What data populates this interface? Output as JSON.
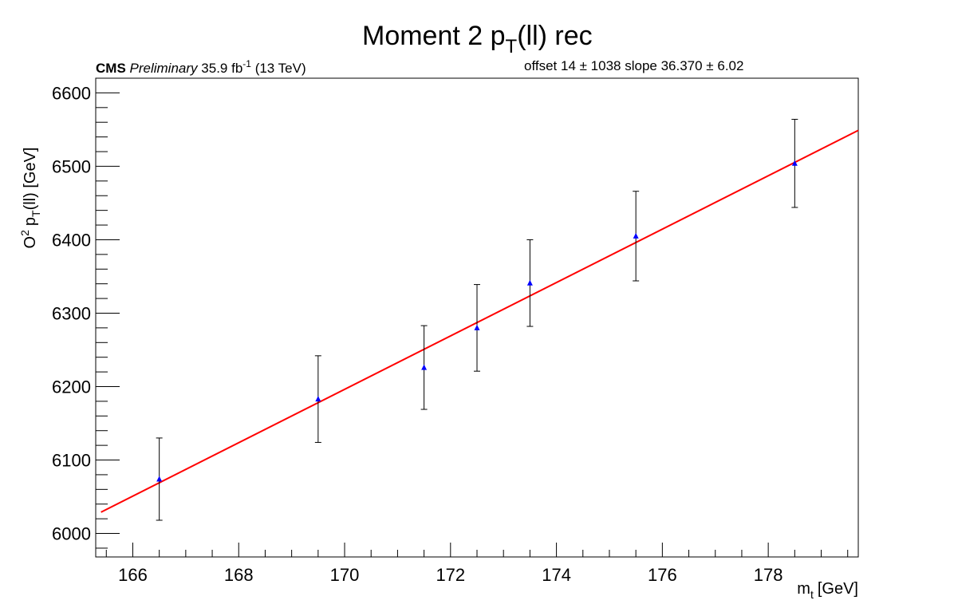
{
  "chart_data": {
    "type": "scatter",
    "title_main": "Moment 2  p",
    "title_sub": "T",
    "title_end": "(ll) rec",
    "cms_bold": "CMS",
    "cms_italic": "Preliminary",
    "cms_lumi": "35.9 fb",
    "cms_lumi_sup": "-1",
    "cms_energy": "(13 TeV)",
    "fit_text": "offset 14 ± 1038   slope 36.370 ± 6.02",
    "xlabel_main": "m",
    "xlabel_sub": "t",
    "xlabel_end": "[GeV]",
    "ylabel_a": "O",
    "ylabel_a_sup": "2",
    "ylabel_b": "p",
    "ylabel_b_sub": "T",
    "ylabel_end": "(ll) [GeV]",
    "xlim": [
      165.3,
      179.7
    ],
    "ylim": [
      5968,
      6620
    ],
    "x_ticks": [
      166,
      168,
      170,
      172,
      174,
      176,
      178
    ],
    "y_ticks": [
      6000,
      6100,
      6200,
      6300,
      6400,
      6500,
      6600
    ],
    "points": [
      {
        "x": 166.5,
        "y": 6074,
        "err": 56
      },
      {
        "x": 169.5,
        "y": 6183,
        "err": 59
      },
      {
        "x": 171.5,
        "y": 6226,
        "err": 57
      },
      {
        "x": 172.5,
        "y": 6280,
        "err": 59
      },
      {
        "x": 173.5,
        "y": 6341,
        "err": 59
      },
      {
        "x": 175.5,
        "y": 6405,
        "err": 61
      },
      {
        "x": 178.5,
        "y": 6504,
        "err": 60
      }
    ],
    "fit_line": {
      "x": [
        165.4,
        179.7
      ],
      "y": [
        6029,
        6549
      ]
    },
    "colors": {
      "points": "#0000ff",
      "fit": "#ff0000",
      "errors": "#000000"
    },
    "grid": false
  }
}
